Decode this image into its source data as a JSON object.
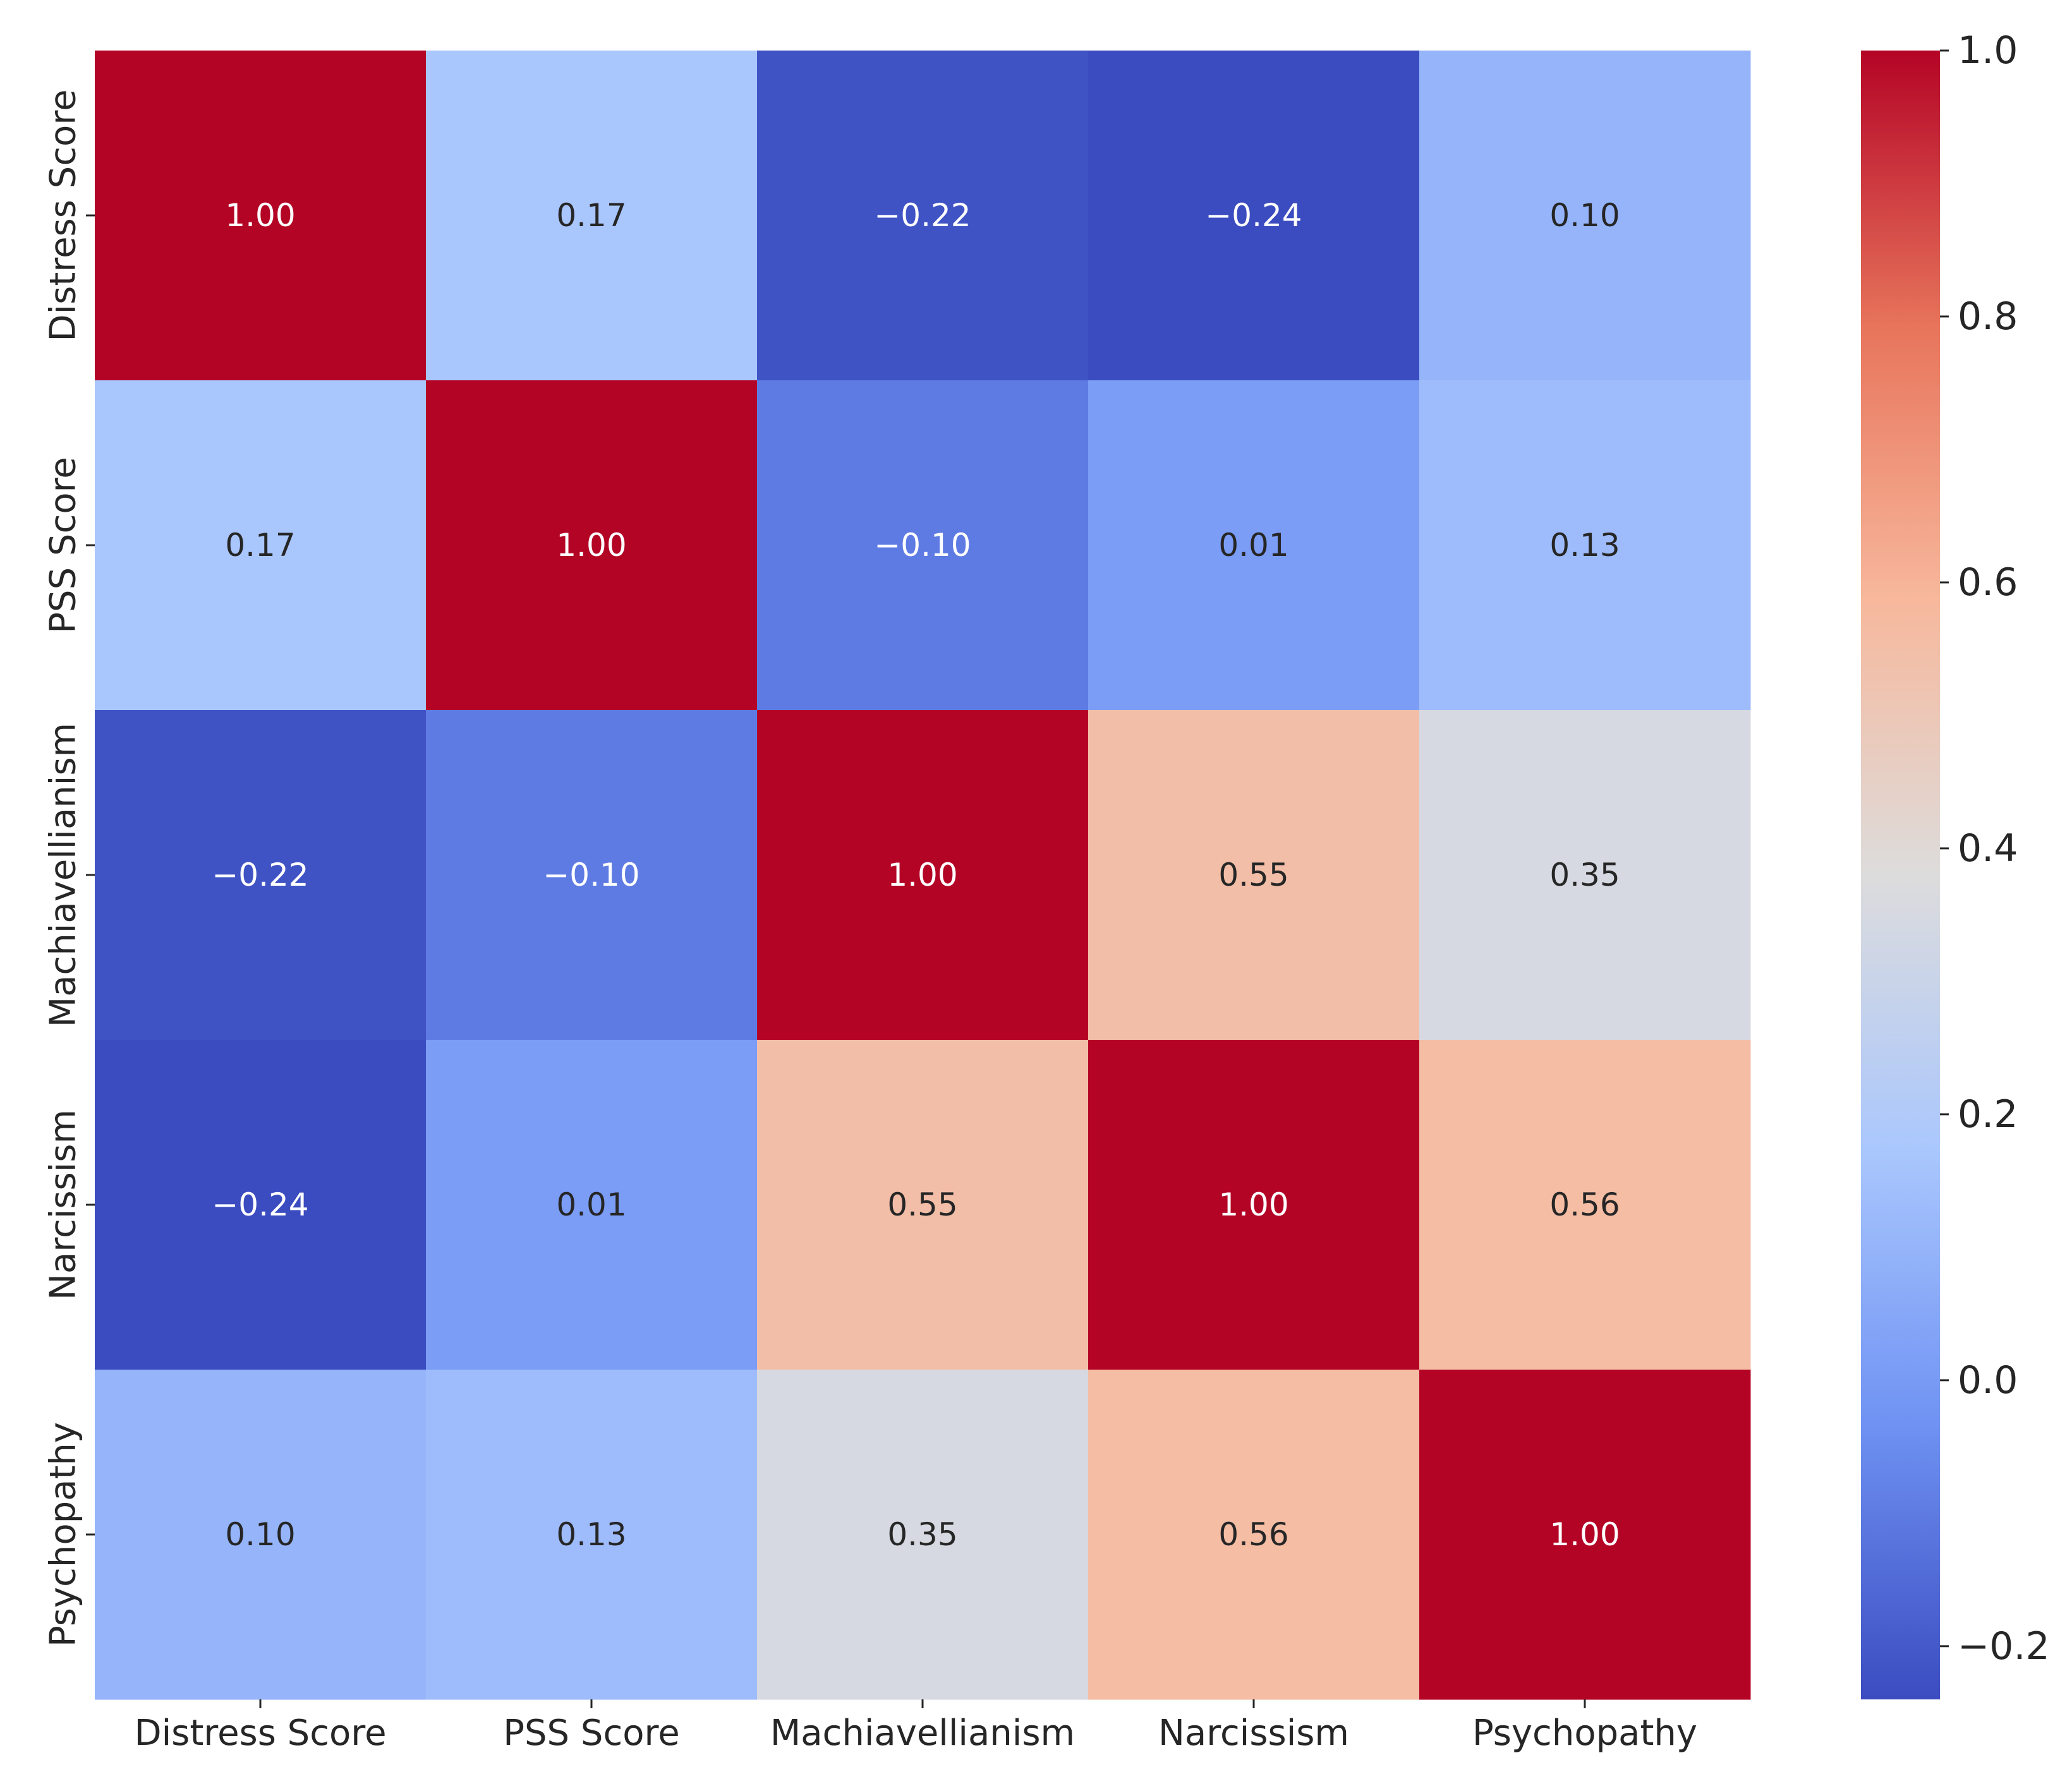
{
  "chart_data": {
    "type": "heatmap",
    "title": "",
    "xlabel": "",
    "ylabel": "",
    "rows": [
      "Distress Score",
      "PSS Score",
      "Machiavellianism",
      "Narcissism",
      "Psychopathy"
    ],
    "columns": [
      "Distress Score",
      "PSS Score",
      "Machiavellianism",
      "Narcissism",
      "Psychopathy"
    ],
    "values": [
      [
        1.0,
        0.17,
        -0.22,
        -0.24,
        0.1
      ],
      [
        0.17,
        1.0,
        -0.1,
        0.01,
        0.13
      ],
      [
        -0.22,
        -0.1,
        1.0,
        0.55,
        0.35
      ],
      [
        -0.24,
        0.01,
        0.55,
        1.0,
        0.56
      ],
      [
        0.1,
        0.13,
        0.35,
        0.56,
        1.0
      ]
    ],
    "annotation_format": "2 decimals",
    "colormap": "coolwarm",
    "colorbar": {
      "min": -0.24,
      "max": 1.0,
      "ticks": [
        -0.2,
        0.0,
        0.2,
        0.4,
        0.6,
        0.8,
        1.0
      ],
      "tick_labels": [
        "−0.2",
        "0.0",
        "0.2",
        "0.4",
        "0.6",
        "0.8",
        "1.0"
      ]
    },
    "colors": {
      "stops": [
        "#3b4cc0",
        "#6f92f3",
        "#aac7fd",
        "#dddcdc",
        "#f7b89c",
        "#e7745b",
        "#b40426"
      ],
      "text_light": "#ffffff",
      "text_dark": "#262626"
    }
  }
}
